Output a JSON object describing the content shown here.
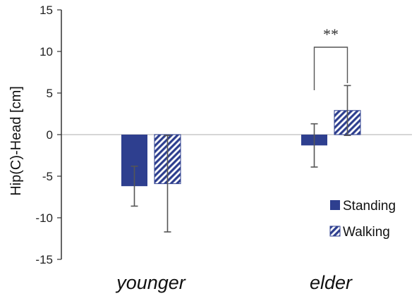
{
  "chart_data": {
    "type": "bar",
    "title": "",
    "xlabel": "",
    "ylabel": "Hip(C)-Head [cm]",
    "ylim": [
      -15,
      15
    ],
    "yticks": [
      15,
      10,
      5,
      0,
      -5,
      -10,
      -15
    ],
    "categories": [
      "younger",
      "elder"
    ],
    "series": [
      {
        "name": "Standing",
        "values": [
          -6.2,
          -1.3
        ],
        "errors": [
          2.4,
          2.6
        ],
        "color": "#2e3f8f",
        "pattern": "solid"
      },
      {
        "name": "Walking",
        "values": [
          -5.9,
          2.9
        ],
        "errors": [
          5.8,
          3.0
        ],
        "color": "#2e3f8f",
        "pattern": "diagonal-hatch"
      }
    ],
    "grid": false,
    "legend": {
      "position": "bottom-right"
    },
    "annotations": [
      {
        "text": "**",
        "category": "elder",
        "type": "significance-bracket"
      }
    ]
  }
}
